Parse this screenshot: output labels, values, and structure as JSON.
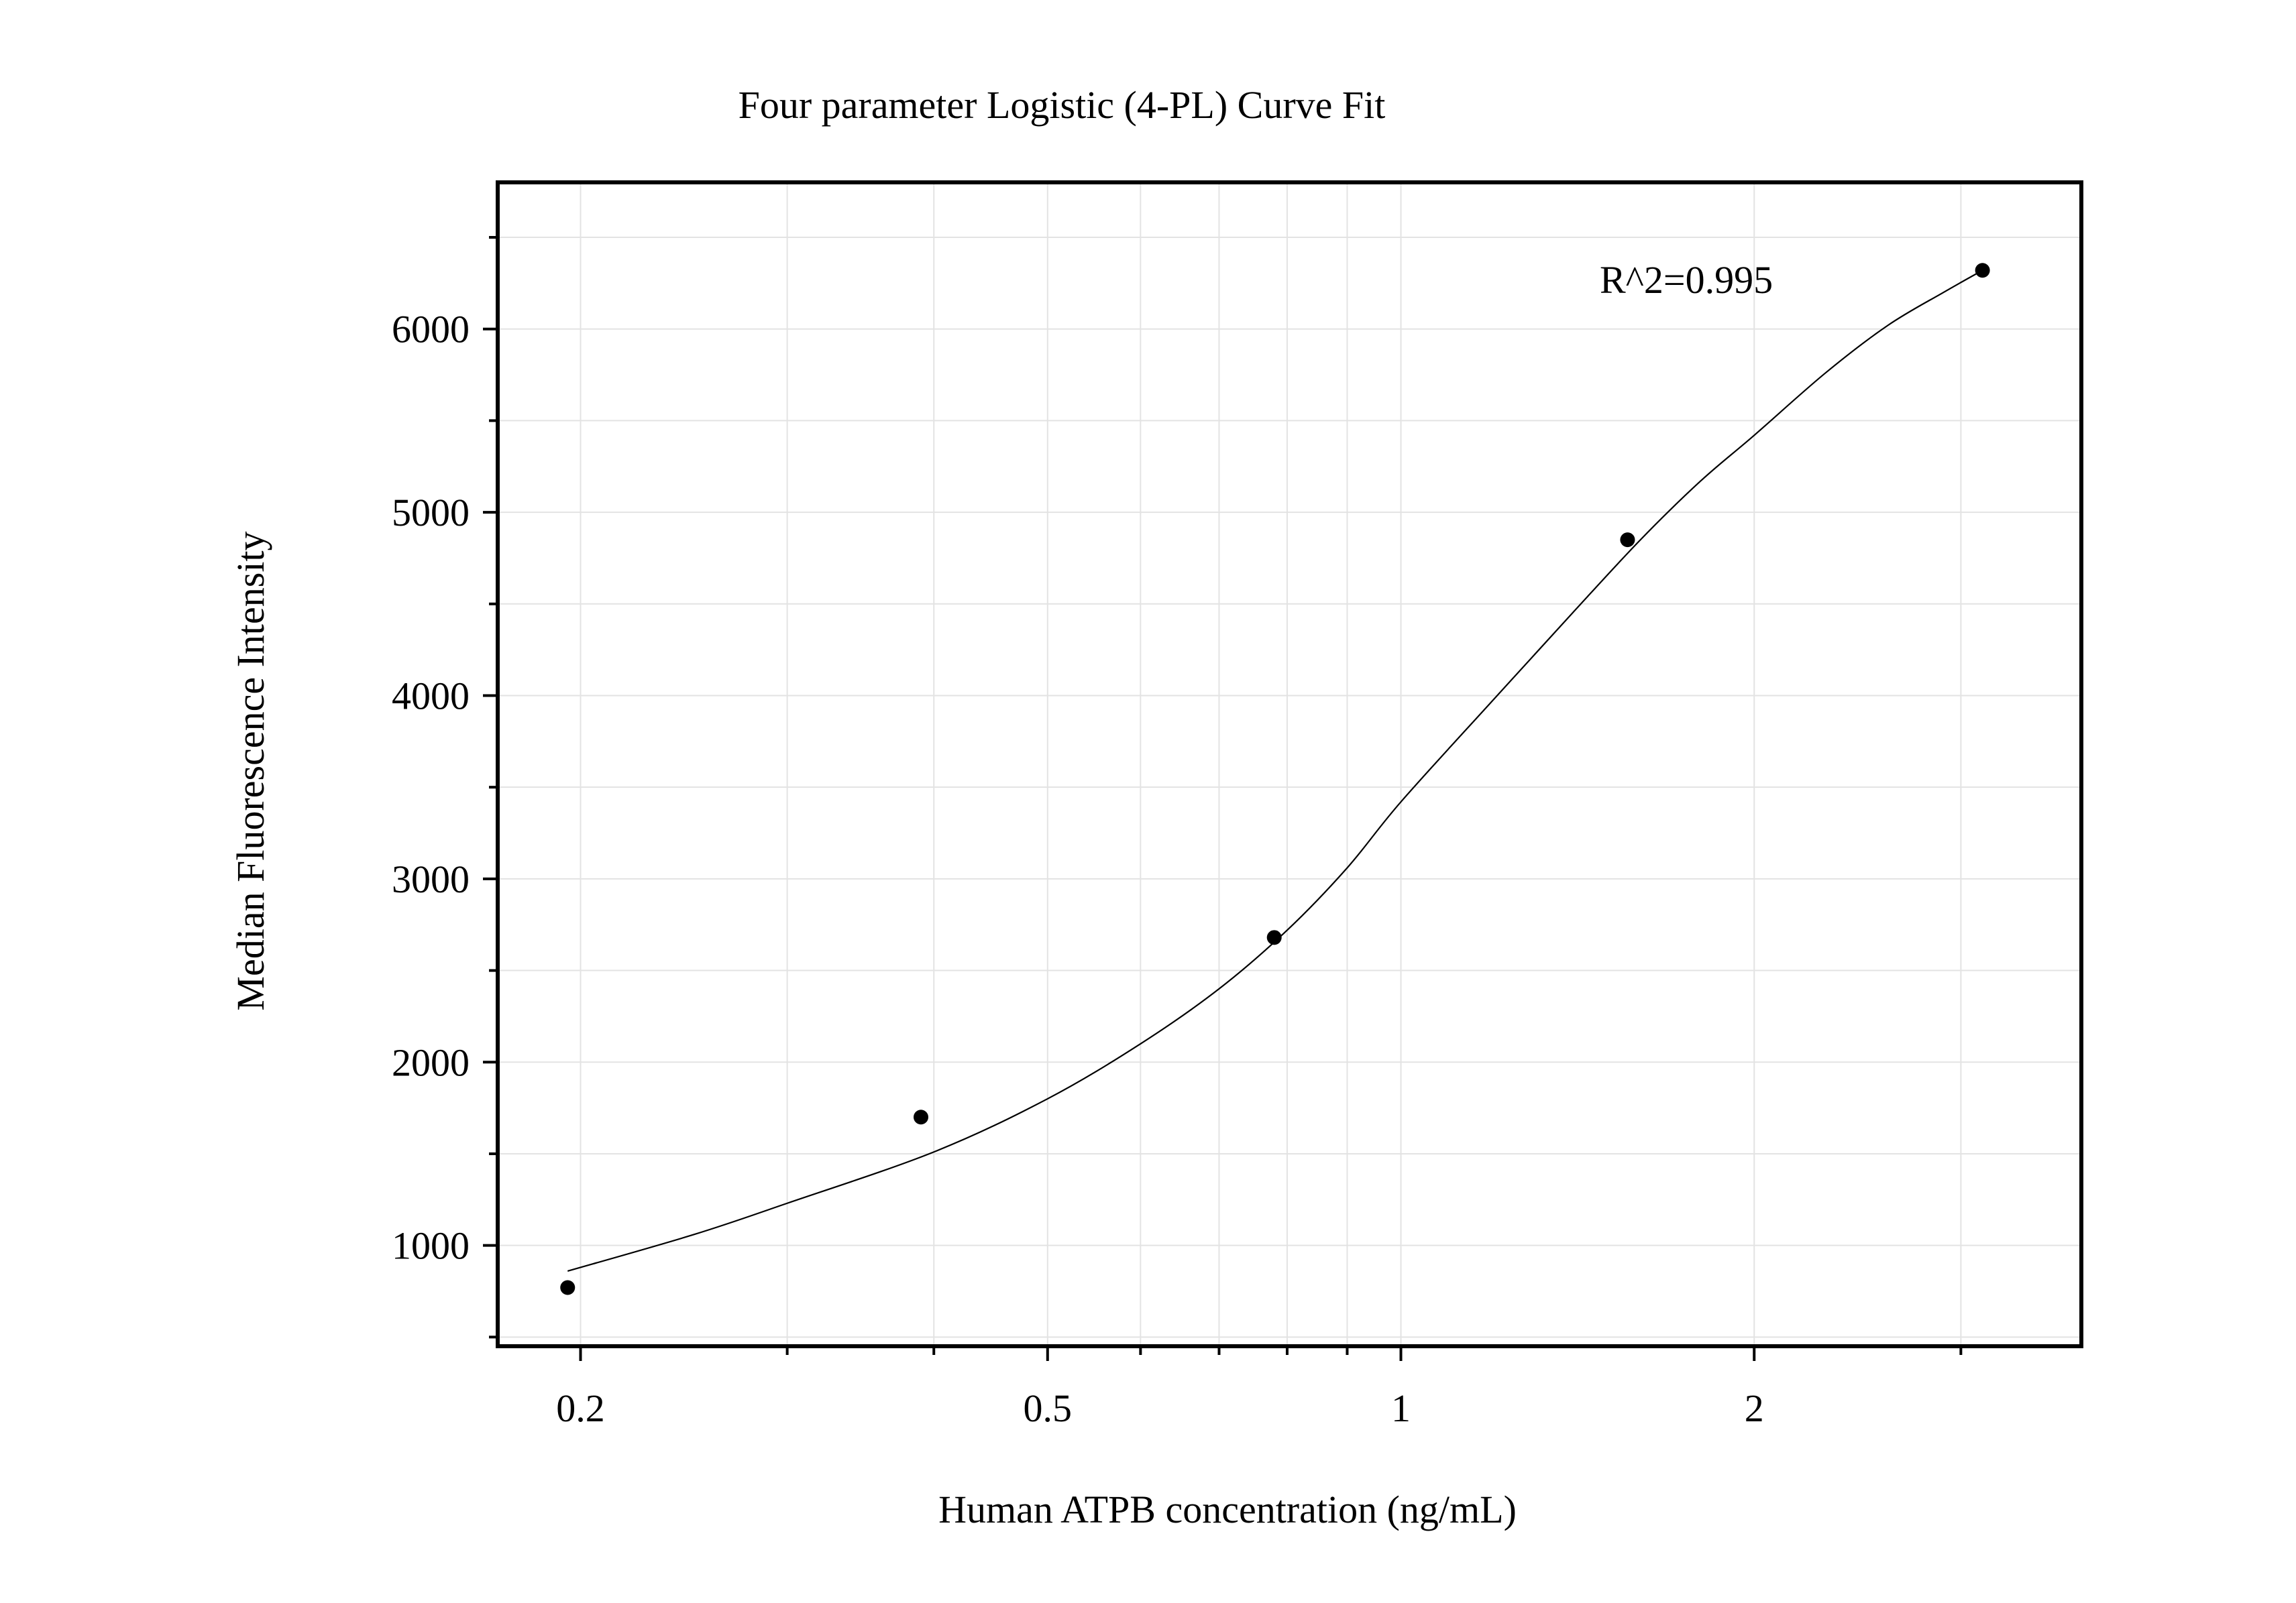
{
  "chart_data": {
    "type": "scatter",
    "title": "Four parameter Logistic (4-PL) Curve Fit",
    "xlabel": "Human ATPB concentration (ng/mL)",
    "ylabel": "Median Fluorescence Intensity",
    "x_scale": "log",
    "xlim": [
      0.17,
      3.8
    ],
    "ylim": [
      450,
      6800
    ],
    "x_ticks": [
      0.2,
      0.5,
      1,
      2
    ],
    "x_tick_labels": [
      "0.2",
      "0.5",
      "1",
      "2"
    ],
    "y_ticks": [
      1000,
      2000,
      3000,
      4000,
      5000,
      6000
    ],
    "y_tick_labels": [
      "1000",
      "2000",
      "3000",
      "4000",
      "5000",
      "6000"
    ],
    "grid": true,
    "annotation": "R^2=0.995",
    "points": [
      {
        "x": 0.195,
        "y": 770
      },
      {
        "x": 0.39,
        "y": 1700
      },
      {
        "x": 0.78,
        "y": 2680
      },
      {
        "x": 1.56,
        "y": 4850
      },
      {
        "x": 3.13,
        "y": 6320
      }
    ],
    "fit": {
      "model": "4PL",
      "x_range": [
        0.195,
        3.13
      ],
      "points": [
        [
          0.195,
          860
        ],
        [
          0.25,
          1060
        ],
        [
          0.3,
          1230
        ],
        [
          0.4,
          1510
        ],
        [
          0.5,
          1800
        ],
        [
          0.6,
          2100
        ],
        [
          0.7,
          2400
        ],
        [
          0.8,
          2720
        ],
        [
          0.9,
          3060
        ],
        [
          1.0,
          3420
        ],
        [
          1.2,
          3980
        ],
        [
          1.4,
          4450
        ],
        [
          1.6,
          4850
        ],
        [
          1.8,
          5170
        ],
        [
          2.0,
          5420
        ],
        [
          2.3,
          5760
        ],
        [
          2.6,
          6020
        ],
        [
          2.9,
          6200
        ],
        [
          3.13,
          6320
        ]
      ]
    },
    "colors": {
      "points": "#000000",
      "curve": "#000000",
      "grid": "#e3e3e3",
      "frame": "#000000"
    }
  }
}
